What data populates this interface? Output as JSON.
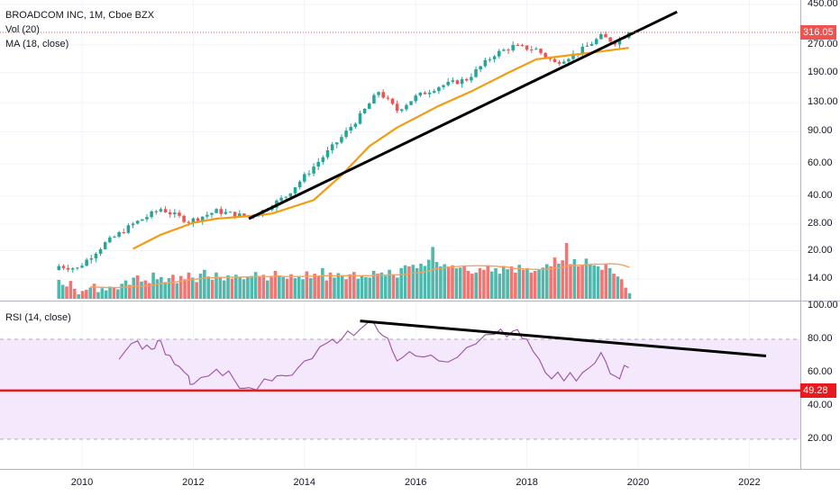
{
  "legend": {
    "title": "BROADCOM INC, 1M, Cboe BZX",
    "volume": "Vol (20)",
    "ma": "MA (18, close)",
    "rsi": "RSI (14, close)"
  },
  "price_axis_ticks": [
    "450.00",
    "270.00",
    "190.00",
    "130.00",
    "90.00",
    "60.00",
    "40.00",
    "28.00",
    "20.00",
    "14.00"
  ],
  "rsi_axis_ticks": [
    "100.00",
    "80.00",
    "60.00",
    "40.00",
    "20.00"
  ],
  "time_axis_ticks": [
    "2010",
    "2012",
    "2014",
    "2016",
    "2018",
    "2020",
    "2022"
  ],
  "badges": {
    "last_price": "316.05",
    "rsi_level": "49.28"
  },
  "colors": {
    "up": "#26a69a",
    "down": "#ef5350",
    "ma": "#f39c12",
    "vol_ma": "#f5a25d",
    "rsi": "#9c4fa8",
    "rsi_band": "#f3e8fc",
    "trendline": "#000000",
    "level": "#e8191f"
  },
  "chart_data": [
    {
      "type": "candlestick",
      "title": "BROADCOM INC, 1M, Cboe BZX",
      "scale": "log",
      "ylim": [
        11,
        480
      ],
      "x_range": [
        "2009-01",
        "2022-12"
      ],
      "last_close": 316.05,
      "close_path": [
        [
          "2009-08",
          16.5
        ],
        [
          "2009-12",
          16
        ],
        [
          "2010-06",
          22
        ],
        [
          "2010-12",
          28
        ],
        [
          "2011-06",
          34
        ],
        [
          "2011-12",
          29
        ],
        [
          "2012-06",
          33
        ],
        [
          "2012-12",
          31
        ],
        [
          "2013-03",
          32
        ],
        [
          "2013-09",
          40
        ],
        [
          "2014-03",
          58
        ],
        [
          "2014-09",
          84
        ],
        [
          "2015-01",
          110
        ],
        [
          "2015-05",
          150
        ],
        [
          "2015-09",
          118
        ],
        [
          "2016-01",
          140
        ],
        [
          "2016-06",
          160
        ],
        [
          "2016-12",
          175
        ],
        [
          "2017-06",
          240
        ],
        [
          "2017-10",
          265
        ],
        [
          "2018-03",
          255
        ],
        [
          "2018-07",
          215
        ],
        [
          "2018-12",
          245
        ],
        [
          "2019-05",
          300
        ],
        [
          "2019-08",
          280
        ],
        [
          "2019-11",
          316.05
        ]
      ]
    },
    {
      "type": "line",
      "name": "MA (18, close)",
      "scale": "log",
      "points": [
        [
          "2010-12",
          20.5
        ],
        [
          "2011-06",
          24.5
        ],
        [
          "2012-01",
          28.5
        ],
        [
          "2012-06",
          30
        ],
        [
          "2013-01",
          31
        ],
        [
          "2013-06",
          32
        ],
        [
          "2014-03",
          38
        ],
        [
          "2014-09",
          52
        ],
        [
          "2015-03",
          75
        ],
        [
          "2015-09",
          95
        ],
        [
          "2016-06",
          125
        ],
        [
          "2017-01",
          150
        ],
        [
          "2017-09",
          190
        ],
        [
          "2018-03",
          225
        ],
        [
          "2018-09",
          235
        ],
        [
          "2019-03",
          245
        ],
        [
          "2019-11",
          260
        ]
      ]
    },
    {
      "type": "bar",
      "name": "Vol (20)",
      "note": "relative monthly volume, 0-1",
      "values": [
        0.34,
        0.25,
        0.22,
        0.32,
        0.18,
        0.08,
        0.14,
        0.16,
        0.2,
        0.27,
        0.12,
        0.19,
        0.15,
        0.22,
        0.2,
        0.17,
        0.27,
        0.33,
        0.25,
        0.38,
        0.42,
        0.31,
        0.33,
        0.28,
        0.47,
        0.35,
        0.39,
        0.3,
        0.37,
        0.43,
        0.28,
        0.41,
        0.35,
        0.47,
        0.38,
        0.3,
        0.45,
        0.52,
        0.4,
        0.34,
        0.47,
        0.38,
        0.33,
        0.42,
        0.36,
        0.43,
        0.38,
        0.35,
        0.39,
        0.41,
        0.48,
        0.39,
        0.43,
        0.33,
        0.41,
        0.5,
        0.42,
        0.39,
        0.36,
        0.44,
        0.37,
        0.4,
        0.35,
        0.49,
        0.37,
        0.45,
        0.41,
        0.55,
        0.33,
        0.47,
        0.38,
        0.46,
        0.41,
        0.35,
        0.44,
        0.48,
        0.36,
        0.42,
        0.39,
        0.38,
        0.5,
        0.45,
        0.47,
        0.41,
        0.52,
        0.44,
        0.38,
        0.55,
        0.6,
        0.58,
        0.61,
        0.55,
        0.63,
        0.59,
        0.7,
        0.93,
        0.66,
        0.58,
        0.62,
        0.58,
        0.6,
        0.55,
        0.56,
        0.58,
        0.5,
        0.45,
        0.47,
        0.55,
        0.52,
        0.6,
        0.49,
        0.55,
        0.45,
        0.59,
        0.53,
        0.58,
        0.47,
        0.61,
        0.52,
        0.55,
        0.47,
        0.5,
        0.53,
        0.56,
        0.62,
        0.58,
        0.74,
        0.63,
        0.69,
        1.0,
        0.62,
        0.71,
        0.58,
        0.6,
        0.72,
        0.61,
        0.6,
        0.58,
        0.52,
        0.63,
        0.55,
        0.45,
        0.4,
        0.35,
        0.2,
        0.1
      ]
    },
    {
      "type": "line",
      "name": "RSI (14, close)",
      "ylim": [
        0,
        100
      ],
      "levels": [
        80,
        20
      ],
      "horizontal_line": 49.28,
      "points": [
        [
          "2010-09",
          68
        ],
        [
          "2011-01",
          79
        ],
        [
          "2011-04",
          74
        ],
        [
          "2011-06",
          79
        ],
        [
          "2011-09",
          65
        ],
        [
          "2011-12",
          58
        ],
        [
          "2012-01",
          53
        ],
        [
          "2012-06",
          62
        ],
        [
          "2012-10",
          55
        ],
        [
          "2013-01",
          51
        ],
        [
          "2013-06",
          55
        ],
        [
          "2013-09",
          58
        ],
        [
          "2014-01",
          67
        ],
        [
          "2014-06",
          78
        ],
        [
          "2014-09",
          80
        ],
        [
          "2015-01",
          86
        ],
        [
          "2015-03",
          91
        ],
        [
          "2015-06",
          82
        ],
        [
          "2015-09",
          67
        ],
        [
          "2016-01",
          70
        ],
        [
          "2016-06",
          67
        ],
        [
          "2016-12",
          75
        ],
        [
          "2017-06",
          83
        ],
        [
          "2017-10",
          85
        ],
        [
          "2018-01",
          80
        ],
        [
          "2018-05",
          60
        ],
        [
          "2018-09",
          55
        ],
        [
          "2019-01",
          60
        ],
        [
          "2019-05",
          72
        ],
        [
          "2019-08",
          58
        ],
        [
          "2019-11",
          63
        ]
      ]
    }
  ]
}
